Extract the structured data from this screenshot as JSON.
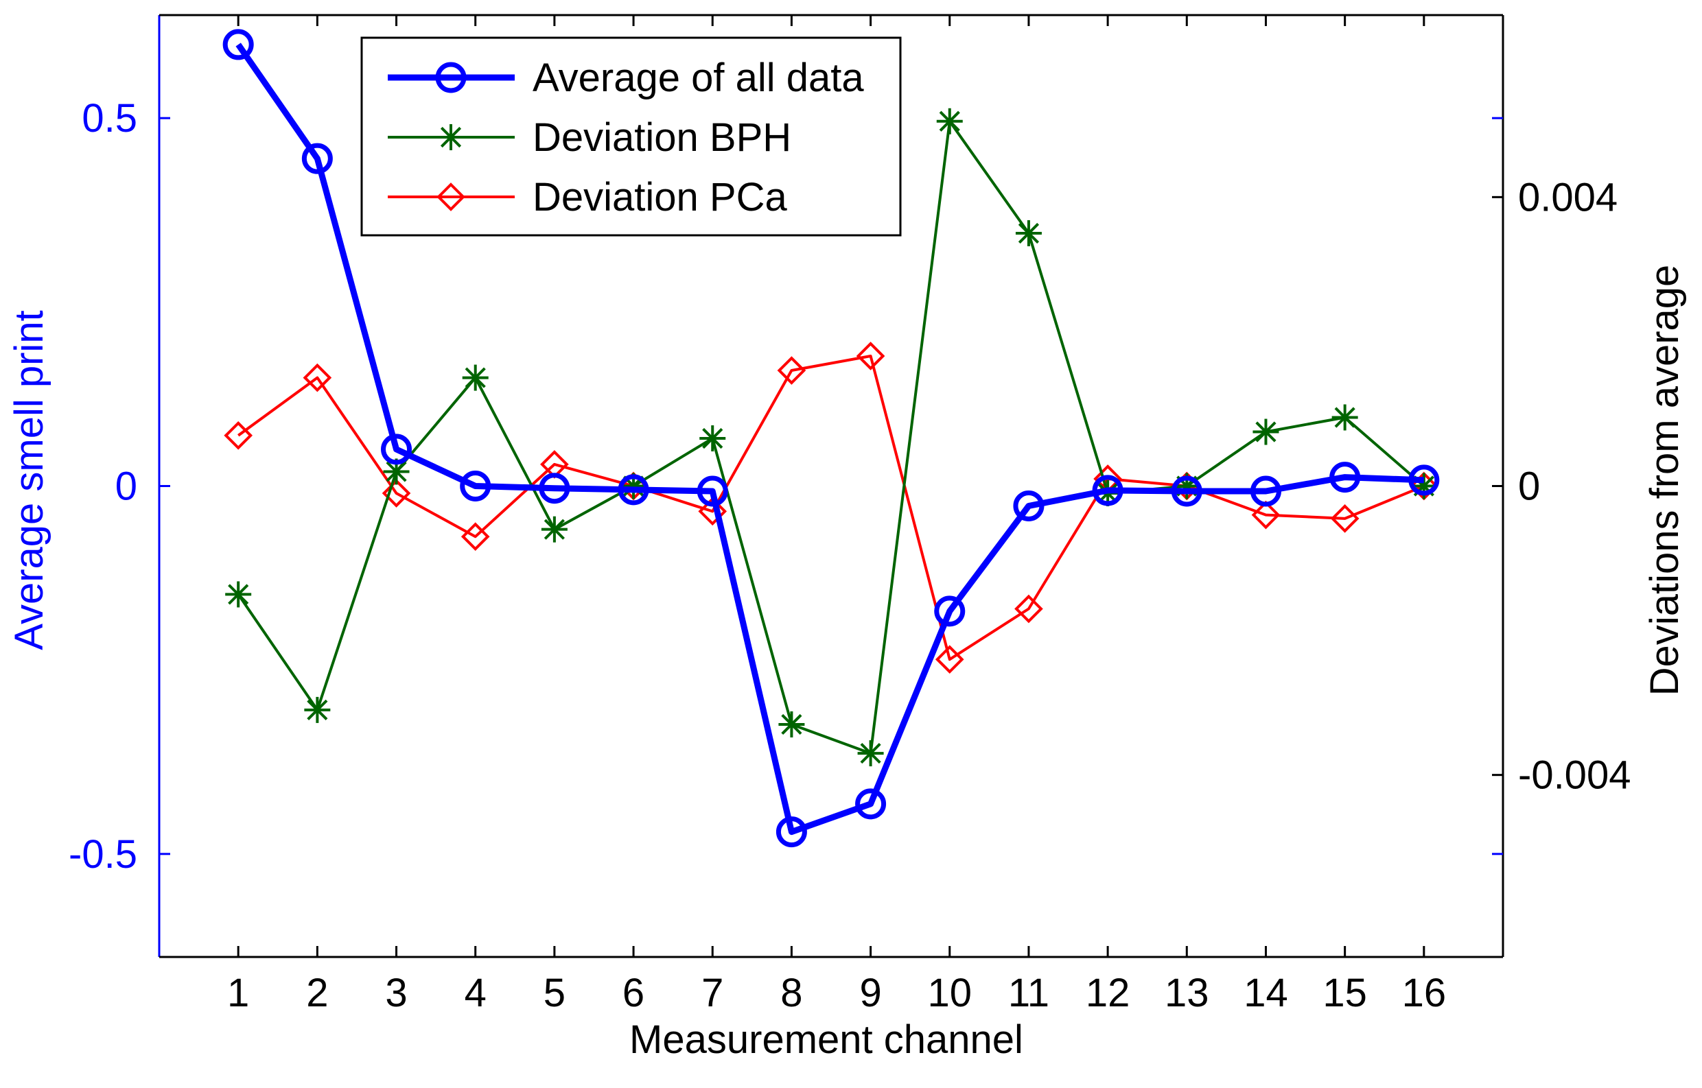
{
  "chart_data": {
    "type": "line",
    "title": "",
    "xlabel": "Measurement channel",
    "ylabel_left": "Average smell print",
    "ylabel_right": "Deviations from average",
    "x": [
      1,
      2,
      3,
      4,
      5,
      6,
      7,
      8,
      9,
      10,
      11,
      12,
      13,
      14,
      15,
      16
    ],
    "xlim": [
      0,
      17
    ],
    "ylim_left": [
      -0.64,
      0.64
    ],
    "ylim_right": [
      -0.00652,
      0.00652
    ],
    "left_ticks": [
      -0.5,
      0,
      0.5
    ],
    "left_tick_labels": [
      "-0.5",
      "0",
      "0.5"
    ],
    "right_ticks": [
      -0.004,
      0,
      0.004
    ],
    "right_tick_labels": [
      "-0.004",
      "0",
      "0.004"
    ],
    "x_tick_labels": [
      "1",
      "2",
      "3",
      "4",
      "5",
      "6",
      "7",
      "8",
      "9",
      "10",
      "11",
      "12",
      "13",
      "14",
      "15",
      "16"
    ],
    "legend_position": "top-left",
    "grid": false,
    "series": [
      {
        "name": "Average of all data",
        "axis": "left",
        "color": "#0000ff",
        "marker": "circle",
        "values": [
          0.6,
          0.445,
          0.05,
          0.0,
          -0.003,
          -0.005,
          -0.007,
          -0.47,
          -0.432,
          -0.17,
          -0.027,
          -0.006,
          -0.007,
          -0.007,
          0.012,
          0.008
        ]
      },
      {
        "name": "Deviation BPH",
        "axis": "right",
        "color": "#006400",
        "marker": "asterisk",
        "values": [
          -0.0015,
          -0.0031,
          0.0002,
          0.0015,
          -0.0006,
          0.0,
          0.00066,
          -0.0033,
          -0.0037,
          0.00505,
          0.0035,
          -0.0001,
          0.0,
          0.00075,
          0.00095,
          0.0
        ]
      },
      {
        "name": "Deviation PCa",
        "axis": "right",
        "color": "#ff0000",
        "marker": "diamond",
        "values": [
          0.0007,
          0.0015,
          -0.0001,
          -0.0007,
          0.0003,
          0.0,
          -0.00035,
          0.0016,
          0.0018,
          -0.0024,
          -0.0017,
          0.0001,
          0.0,
          -0.0004,
          -0.00045,
          0.0
        ]
      }
    ]
  }
}
